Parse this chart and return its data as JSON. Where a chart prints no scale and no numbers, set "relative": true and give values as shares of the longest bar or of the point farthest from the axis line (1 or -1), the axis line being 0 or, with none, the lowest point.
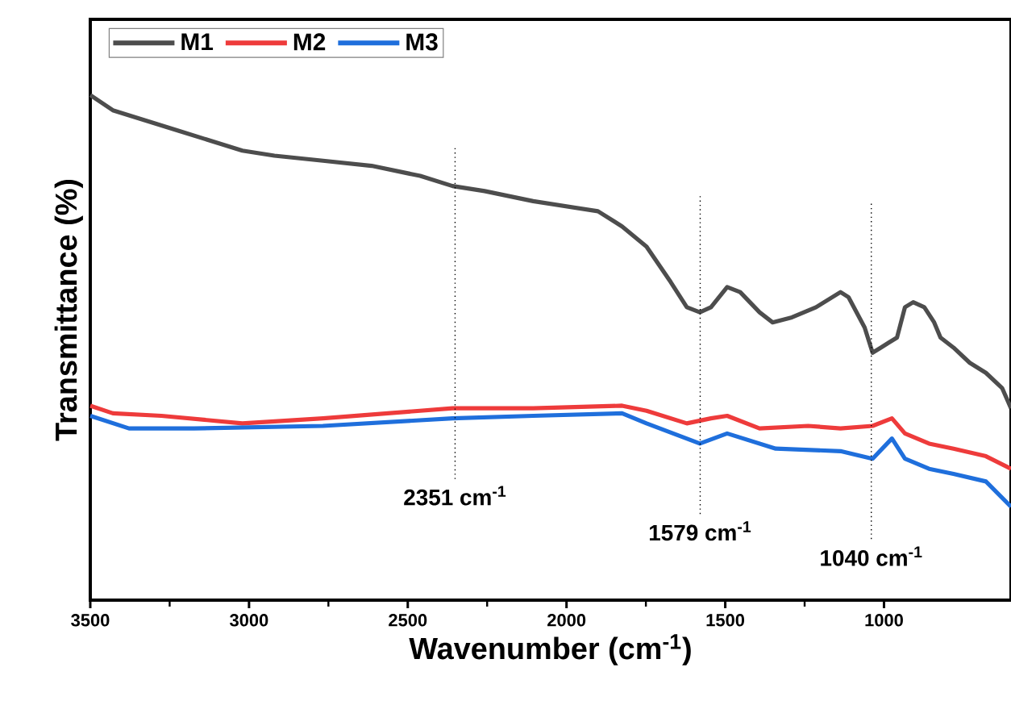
{
  "chart_data": {
    "type": "line",
    "relative": true,
    "xlabel": "Wavenumber (cm$^{-1}$)",
    "ylabel": "Transmittance (%)",
    "xlim": [
      3500,
      600
    ],
    "xticks": [
      3500,
      3000,
      2500,
      2000,
      1500,
      1000
    ],
    "legend": "top left",
    "grid": false,
    "marker": "none",
    "line_style": "solid",
    "series": [
      {
        "name": "M1",
        "color": "#4d4d4d",
        "x": [
          3500,
          3429,
          3327,
          3225,
          3123,
          3021,
          2920,
          2767,
          2614,
          2461,
          2359,
          2258,
          2105,
          1901,
          1825,
          1748,
          1672,
          1621,
          1580,
          1545,
          1494,
          1453,
          1392,
          1351,
          1290,
          1214,
          1137,
          1112,
          1061,
          1036,
          1010,
          985,
          959,
          934,
          908,
          873,
          842,
          822,
          781,
          730,
          679,
          628,
          600
        ],
        "values": [
          1.0,
          0.97,
          0.95,
          0.93,
          0.91,
          0.89,
          0.88,
          0.87,
          0.86,
          0.84,
          0.82,
          0.81,
          0.79,
          0.77,
          0.74,
          0.7,
          0.63,
          0.58,
          0.57,
          0.58,
          0.62,
          0.61,
          0.57,
          0.55,
          0.56,
          0.58,
          0.61,
          0.6,
          0.54,
          0.49,
          0.5,
          0.51,
          0.52,
          0.58,
          0.59,
          0.58,
          0.55,
          0.52,
          0.5,
          0.47,
          0.45,
          0.42,
          0.38
        ]
      },
      {
        "name": "M2",
        "color": "#ee3b3b",
        "x": [
          3500,
          3429,
          3276,
          3021,
          2767,
          2359,
          2105,
          1825,
          1748,
          1621,
          1545,
          1494,
          1392,
          1239,
          1137,
          1036,
          975,
          934,
          858,
          781,
          679,
          600
        ],
        "values": [
          0.385,
          0.37,
          0.365,
          0.35,
          0.36,
          0.38,
          0.38,
          0.385,
          0.375,
          0.35,
          0.36,
          0.365,
          0.34,
          0.345,
          0.34,
          0.345,
          0.36,
          0.33,
          0.31,
          0.3,
          0.285,
          0.26
        ]
      },
      {
        "name": "M3",
        "color": "#1f6fdc",
        "x": [
          3500,
          3378,
          3174,
          2767,
          2359,
          2105,
          1825,
          1748,
          1580,
          1494,
          1341,
          1137,
          1036,
          975,
          934,
          858,
          781,
          679,
          600
        ],
        "values": [
          0.365,
          0.34,
          0.34,
          0.345,
          0.36,
          0.365,
          0.37,
          0.35,
          0.31,
          0.33,
          0.3,
          0.295,
          0.28,
          0.32,
          0.28,
          0.26,
          0.25,
          0.235,
          0.185
        ]
      }
    ],
    "ref_lines": [
      {
        "axis": "x",
        "value": 2351,
        "label": "2351 cm$^{-1}$",
        "line_style": "dotted"
      },
      {
        "axis": "x",
        "value": 1579,
        "label": "1579 cm$^{-1}$",
        "line_style": "dotted"
      },
      {
        "axis": "x",
        "value": 1040,
        "label": "1040 cm$^{-1}$",
        "line_style": "dotted"
      }
    ]
  }
}
